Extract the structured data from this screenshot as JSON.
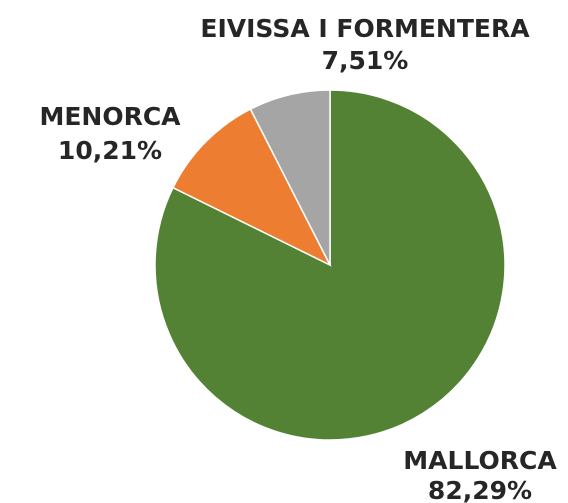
{
  "chart_data": {
    "type": "pie",
    "categories": [
      "MALLORCA",
      "MENORCA",
      "EIVISSA I FORMENTERA"
    ],
    "values": [
      82.29,
      10.21,
      7.51
    ],
    "value_labels": [
      "82,29%",
      "10,21%",
      "7,51%"
    ],
    "colors": [
      "#548235",
      "#ed7d31",
      "#a5a5a5"
    ]
  }
}
